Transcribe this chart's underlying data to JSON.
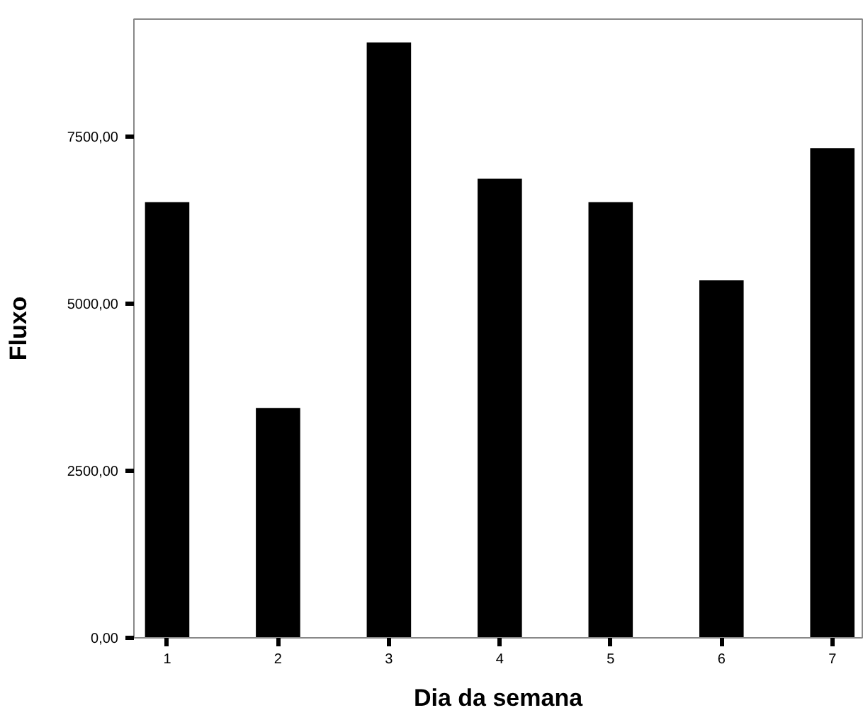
{
  "chart_data": {
    "type": "bar",
    "xlabel": "Dia da semana",
    "ylabel": "Fluxo",
    "categories": [
      "1",
      "2",
      "3",
      "4",
      "5",
      "6",
      "7"
    ],
    "values": [
      6520,
      3440,
      8910,
      6870,
      6520,
      5350,
      7330
    ],
    "color": "#000000",
    "ylim": [
      0,
      9260
    ],
    "yticks": [
      {
        "value": 0,
        "label": "0,00"
      },
      {
        "value": 2500,
        "label": "2500,00"
      },
      {
        "value": 5000,
        "label": "5000,00"
      },
      {
        "value": 7500,
        "label": "7500,00"
      }
    ],
    "grid": false
  }
}
